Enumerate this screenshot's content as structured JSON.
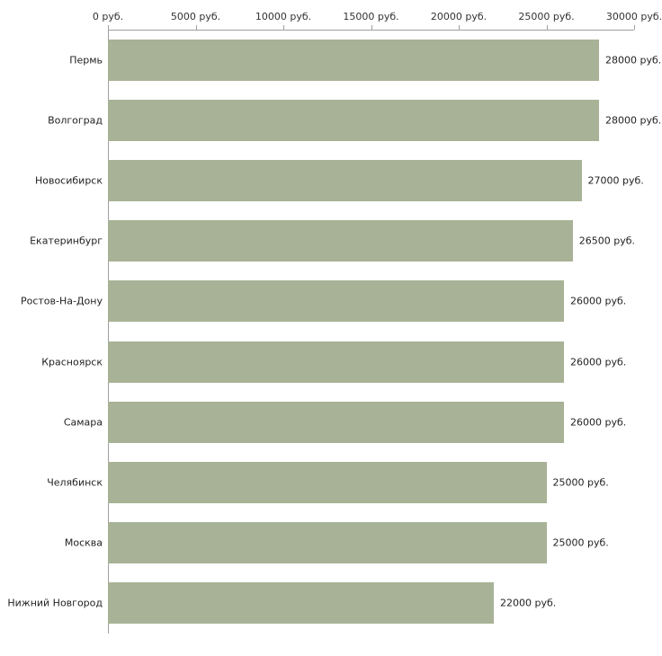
{
  "chart_data": {
    "type": "bar",
    "orientation": "horizontal",
    "title": "",
    "xlabel": "",
    "ylabel": "",
    "categories": [
      "Пермь",
      "Волгоград",
      "Новосибирск",
      "Екатеринбург",
      "Ростов-На-Дону",
      "Красноярск",
      "Самара",
      "Челябинск",
      "Москва",
      "Нижний Новгород"
    ],
    "values": [
      28000,
      28000,
      27000,
      26500,
      26000,
      26000,
      26000,
      25000,
      25000,
      22000
    ],
    "value_labels": [
      "28000 руб.",
      "28000 руб.",
      "27000 руб.",
      "26500 руб.",
      "26000 руб.",
      "26000 руб.",
      "26000 руб.",
      "25000 руб.",
      "25000 руб.",
      "22000 руб."
    ],
    "x_axis": {
      "position": "top",
      "min": 0,
      "max": 30000,
      "ticks": [
        0,
        5000,
        10000,
        15000,
        20000,
        25000,
        30000
      ],
      "tick_labels": [
        "0 руб.",
        "5000 руб.",
        "10000 руб.",
        "15000 руб.",
        "20000 руб.",
        "25000 руб.",
        "30000 руб."
      ]
    },
    "grid": false,
    "legend": false,
    "colors": {
      "bar": "#a8b296",
      "axis": "#a0a0a0",
      "text": "#222222",
      "background": "#ffffff"
    }
  }
}
